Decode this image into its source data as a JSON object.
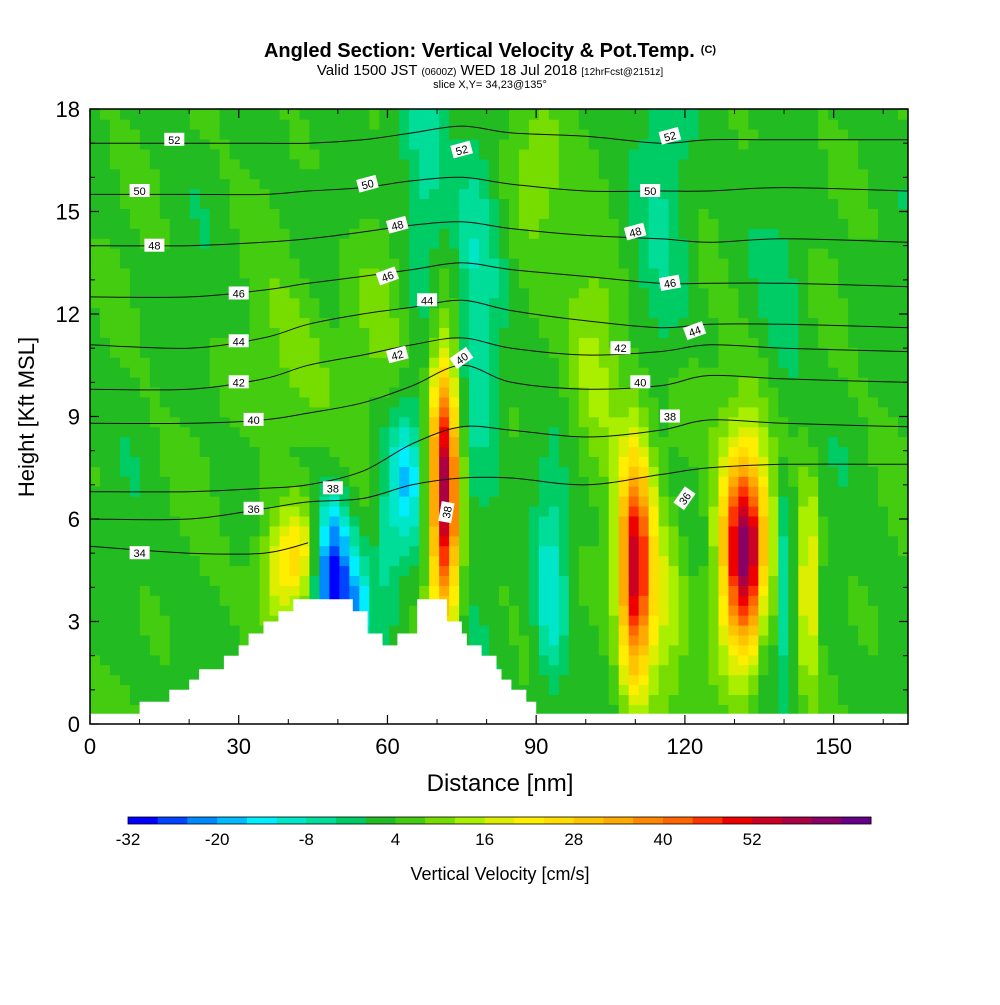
{
  "chart_data": {
    "type": "heatmap",
    "title": "Angled Section: Vertical Velocity & Pot.Temp.",
    "title_suffix": "(C)",
    "subtitle": {
      "prefix": "Valid 1500 JST",
      "utc": "(0600Z)",
      "date": "WED 18 Jul 2018",
      "forecast": "[12hrFcst@2151z]"
    },
    "slice_label": "slice X,Y= 34,23@135°",
    "xlabel": "Distance [nm]",
    "ylabel": "Height [Kft MSL]",
    "xlim": [
      0,
      165
    ],
    "ylim": [
      0,
      18
    ],
    "x_ticks": [
      0,
      30,
      60,
      90,
      120,
      150
    ],
    "y_ticks": [
      0,
      3,
      6,
      9,
      12,
      15,
      18
    ],
    "x_tick_labels": [
      "0",
      "30",
      "60",
      "90",
      "120",
      "150"
    ],
    "y_tick_labels": [
      "0",
      "3",
      "6",
      "9",
      "12",
      "15",
      "18"
    ],
    "colorbar": {
      "label": "Vertical Velocity [cm/s]",
      "min": -32,
      "step": 4,
      "colors": [
        "#0000ff",
        "#0044ff",
        "#0088ff",
        "#00bbff",
        "#00eeff",
        "#00e6c8",
        "#00dd99",
        "#00cc66",
        "#22bb22",
        "#44cc11",
        "#77dd00",
        "#aaee00",
        "#ddee00",
        "#ffee00",
        "#ffdd00",
        "#ffc400",
        "#ffaa00",
        "#ff8800",
        "#ff6600",
        "#ff3300",
        "#ee0000",
        "#cc0022",
        "#aa0044",
        "#880066",
        "#660088"
      ],
      "tick_values": [
        -32,
        -20,
        -8,
        4,
        16,
        28,
        40,
        52
      ],
      "tick_labels": [
        "-32",
        "-20",
        "-8",
        "4",
        "16",
        "28",
        "40",
        "52"
      ]
    },
    "terrain_steps": [
      [
        0,
        0.3
      ],
      [
        10,
        0.3
      ],
      [
        10,
        0.65
      ],
      [
        16,
        0.65
      ],
      [
        16,
        1.0
      ],
      [
        20,
        1.0
      ],
      [
        20,
        1.3
      ],
      [
        22,
        1.3
      ],
      [
        22,
        1.6
      ],
      [
        27,
        1.6
      ],
      [
        27,
        2.0
      ],
      [
        30,
        2.0
      ],
      [
        30,
        2.3
      ],
      [
        32,
        2.3
      ],
      [
        32,
        2.65
      ],
      [
        35,
        2.65
      ],
      [
        35,
        3.0
      ],
      [
        38,
        3.0
      ],
      [
        38,
        3.3
      ],
      [
        41,
        3.3
      ],
      [
        41,
        3.65
      ],
      [
        53,
        3.65
      ],
      [
        53,
        3.3
      ],
      [
        56,
        3.3
      ],
      [
        56,
        2.65
      ],
      [
        59,
        2.65
      ],
      [
        59,
        2.3
      ],
      [
        62,
        2.3
      ],
      [
        62,
        2.65
      ],
      [
        66,
        2.65
      ],
      [
        66,
        3.65
      ],
      [
        72,
        3.65
      ],
      [
        72,
        3.0
      ],
      [
        75,
        3.0
      ],
      [
        75,
        2.65
      ],
      [
        76,
        2.65
      ],
      [
        76,
        2.3
      ],
      [
        79,
        2.3
      ],
      [
        79,
        2.0
      ],
      [
        82,
        2.0
      ],
      [
        82,
        1.6
      ],
      [
        83,
        1.6
      ],
      [
        83,
        1.3
      ],
      [
        85,
        1.3
      ],
      [
        85,
        1.0
      ],
      [
        88,
        1.0
      ],
      [
        88,
        0.65
      ],
      [
        90,
        0.65
      ],
      [
        90,
        0.3
      ],
      [
        165,
        0.3
      ]
    ],
    "velocity_features": [
      {
        "x": 49,
        "z": 4.2,
        "sx": 2.6,
        "sz": 1.6,
        "w": -36
      },
      {
        "x": 54,
        "z": 3.3,
        "sx": 1.8,
        "sz": 1.1,
        "w": -18
      },
      {
        "x": 64,
        "z": 7.2,
        "sx": 2.2,
        "sz": 1.5,
        "w": -16
      },
      {
        "x": 60,
        "z": 5.2,
        "sx": 1.8,
        "sz": 1.8,
        "w": -8
      },
      {
        "x": 71.5,
        "z": 6.8,
        "sx": 2.1,
        "sz": 2.8,
        "w": 56
      },
      {
        "x": 93,
        "z": 3.8,
        "sx": 2.2,
        "sz": 2.2,
        "w": -14
      },
      {
        "x": 110,
        "z": 4.5,
        "sx": 2.4,
        "sz": 2.4,
        "w": 52
      },
      {
        "x": 116,
        "z": 3.5,
        "sx": 2.8,
        "sz": 2.2,
        "w": 12
      },
      {
        "x": 132,
        "z": 5.0,
        "sx": 3.4,
        "sz": 2.2,
        "w": 58
      },
      {
        "x": 136,
        "z": 3.5,
        "sx": 1.5,
        "sz": 1.6,
        "w": -10
      },
      {
        "x": 140,
        "z": 4.0,
        "sx": 1.0,
        "sz": 2.0,
        "w": -14
      },
      {
        "x": 145,
        "z": 4.2,
        "sx": 1.3,
        "sz": 2.0,
        "w": 22
      },
      {
        "x": 39,
        "z": 4.6,
        "sx": 3.4,
        "sz": 1.2,
        "w": 20
      },
      {
        "x": 43,
        "z": 5.2,
        "sx": 2.2,
        "sz": 1.0,
        "w": 10
      },
      {
        "x": 78,
        "z": 11.0,
        "sx": 3.0,
        "sz": 4.5,
        "w": -10
      },
      {
        "x": 67,
        "z": 15.5,
        "sx": 3.5,
        "sz": 3.0,
        "w": -10
      },
      {
        "x": 102,
        "z": 11.0,
        "sx": 4.0,
        "sz": 2.5,
        "w": 10
      },
      {
        "x": 116,
        "z": 14.5,
        "sx": 4.0,
        "sz": 4.0,
        "w": -8
      },
      {
        "x": 58,
        "z": 12.0,
        "sx": 5.0,
        "sz": 2.0,
        "w": 6
      },
      {
        "x": 120,
        "z": 9.2,
        "sx": 6.0,
        "sz": 1.6,
        "w": 5
      },
      {
        "x": 41,
        "z": 10.5,
        "sx": 6.0,
        "sz": 1.8,
        "w": 6
      },
      {
        "x": 140,
        "z": 12.5,
        "sx": 3.0,
        "sz": 2.5,
        "w": -4
      },
      {
        "x": 90,
        "z": 16.5,
        "sx": 4.0,
        "sz": 1.5,
        "w": 8
      }
    ],
    "theta_isolines": [
      {
        "label": "34",
        "pts": [
          [
            0,
            5.2
          ],
          [
            20,
            5.0
          ],
          [
            35,
            5.0
          ],
          [
            44,
            5.3
          ]
        ]
      },
      {
        "label": "36",
        "pts": [
          [
            0,
            6.0
          ],
          [
            20,
            6.0
          ],
          [
            35,
            6.3
          ],
          [
            44,
            6.5
          ],
          [
            55,
            6.6
          ],
          [
            65,
            7.0
          ],
          [
            75,
            7.2
          ],
          [
            85,
            7.2
          ],
          [
            100,
            7.0
          ],
          [
            115,
            7.3
          ],
          [
            125,
            7.5
          ],
          [
            140,
            7.6
          ],
          [
            165,
            7.6
          ]
        ]
      },
      {
        "label": "38",
        "pts": [
          [
            0,
            6.8
          ],
          [
            20,
            6.8
          ],
          [
            35,
            6.9
          ],
          [
            44,
            7.0
          ],
          [
            55,
            7.4
          ],
          [
            65,
            8.2
          ],
          [
            75,
            8.7
          ],
          [
            85,
            8.6
          ],
          [
            100,
            8.4
          ],
          [
            115,
            8.6
          ],
          [
            125,
            8.9
          ],
          [
            140,
            8.8
          ],
          [
            165,
            8.7
          ]
        ]
      },
      {
        "label": "40",
        "pts": [
          [
            0,
            8.8
          ],
          [
            20,
            8.8
          ],
          [
            35,
            8.9
          ],
          [
            44,
            9.1
          ],
          [
            55,
            9.4
          ],
          [
            65,
            9.9
          ],
          [
            75,
            10.5
          ],
          [
            85,
            10.0
          ],
          [
            100,
            9.8
          ],
          [
            115,
            9.9
          ],
          [
            125,
            10.2
          ],
          [
            140,
            10.1
          ],
          [
            165,
            10.0
          ]
        ]
      },
      {
        "label": "42",
        "pts": [
          [
            0,
            9.8
          ],
          [
            20,
            9.8
          ],
          [
            35,
            10.1
          ],
          [
            44,
            10.5
          ],
          [
            55,
            10.8
          ],
          [
            65,
            11.1
          ],
          [
            75,
            11.3
          ],
          [
            85,
            11.0
          ],
          [
            100,
            10.8
          ],
          [
            115,
            10.9
          ],
          [
            125,
            11.1
          ],
          [
            140,
            11.0
          ],
          [
            165,
            10.9
          ]
        ]
      },
      {
        "label": "44",
        "pts": [
          [
            0,
            11.1
          ],
          [
            20,
            11.0
          ],
          [
            35,
            11.3
          ],
          [
            44,
            11.7
          ],
          [
            55,
            12.0
          ],
          [
            65,
            12.2
          ],
          [
            75,
            12.4
          ],
          [
            85,
            12.1
          ],
          [
            100,
            11.8
          ],
          [
            115,
            11.6
          ],
          [
            125,
            11.7
          ],
          [
            140,
            11.7
          ],
          [
            165,
            11.6
          ]
        ]
      },
      {
        "label": "46",
        "pts": [
          [
            0,
            12.5
          ],
          [
            20,
            12.5
          ],
          [
            35,
            12.7
          ],
          [
            44,
            12.9
          ],
          [
            55,
            13.1
          ],
          [
            65,
            13.3
          ],
          [
            75,
            13.5
          ],
          [
            85,
            13.3
          ],
          [
            100,
            13.1
          ],
          [
            115,
            12.9
          ],
          [
            125,
            12.9
          ],
          [
            140,
            12.9
          ],
          [
            165,
            12.8
          ]
        ]
      },
      {
        "label": "48",
        "pts": [
          [
            0,
            14.0
          ],
          [
            20,
            14.0
          ],
          [
            35,
            14.1
          ],
          [
            44,
            14.2
          ],
          [
            55,
            14.4
          ],
          [
            65,
            14.6
          ],
          [
            75,
            14.7
          ],
          [
            85,
            14.5
          ],
          [
            100,
            14.3
          ],
          [
            115,
            14.2
          ],
          [
            125,
            14.1
          ],
          [
            140,
            14.2
          ],
          [
            165,
            14.1
          ]
        ]
      },
      {
        "label": "50",
        "pts": [
          [
            0,
            15.5
          ],
          [
            20,
            15.5
          ],
          [
            35,
            15.5
          ],
          [
            44,
            15.6
          ],
          [
            55,
            15.7
          ],
          [
            65,
            15.9
          ],
          [
            75,
            16.0
          ],
          [
            85,
            15.8
          ],
          [
            100,
            15.6
          ],
          [
            115,
            15.6
          ],
          [
            125,
            15.6
          ],
          [
            140,
            15.7
          ],
          [
            165,
            15.6
          ]
        ]
      },
      {
        "label": "52",
        "pts": [
          [
            0,
            17.0
          ],
          [
            20,
            17.0
          ],
          [
            35,
            17.0
          ],
          [
            44,
            17.0
          ],
          [
            55,
            17.1
          ],
          [
            65,
            17.3
          ],
          [
            75,
            17.5
          ],
          [
            85,
            17.3
          ],
          [
            100,
            17.2
          ],
          [
            115,
            17.0
          ],
          [
            125,
            17.1
          ],
          [
            140,
            17.1
          ],
          [
            165,
            17.1
          ]
        ]
      }
    ],
    "isoline_labels": [
      {
        "text": "52",
        "x": 17,
        "z": 17.1,
        "angle": 0
      },
      {
        "text": "50",
        "x": 10,
        "z": 15.6,
        "angle": 0
      },
      {
        "text": "48",
        "x": 13,
        "z": 14.0,
        "angle": 0
      },
      {
        "text": "46",
        "x": 30,
        "z": 12.6,
        "angle": 0
      },
      {
        "text": "44",
        "x": 30,
        "z": 11.2,
        "angle": 0
      },
      {
        "text": "42",
        "x": 30,
        "z": 10.0,
        "angle": 0
      },
      {
        "text": "40",
        "x": 33,
        "z": 8.9,
        "angle": 0
      },
      {
        "text": "36",
        "x": 33,
        "z": 6.3,
        "angle": 0
      },
      {
        "text": "34",
        "x": 10,
        "z": 5.0,
        "angle": 0
      },
      {
        "text": "38",
        "x": 49,
        "z": 6.9,
        "angle": 0
      },
      {
        "text": "38",
        "x": 72,
        "z": 6.2,
        "angle": -80
      },
      {
        "text": "52",
        "x": 75,
        "z": 16.8,
        "angle": -15
      },
      {
        "text": "50",
        "x": 56,
        "z": 15.8,
        "angle": -15
      },
      {
        "text": "48",
        "x": 62,
        "z": 14.6,
        "angle": -15
      },
      {
        "text": "46",
        "x": 60,
        "z": 13.1,
        "angle": -20
      },
      {
        "text": "44",
        "x": 68,
        "z": 12.4,
        "angle": 0
      },
      {
        "text": "42",
        "x": 62,
        "z": 10.8,
        "angle": -15
      },
      {
        "text": "40",
        "x": 75,
        "z": 10.7,
        "angle": -35
      },
      {
        "text": "52",
        "x": 117,
        "z": 17.2,
        "angle": -15
      },
      {
        "text": "50",
        "x": 113,
        "z": 15.6,
        "angle": 0
      },
      {
        "text": "48",
        "x": 110,
        "z": 14.4,
        "angle": -15
      },
      {
        "text": "46",
        "x": 117,
        "z": 12.9,
        "angle": -10
      },
      {
        "text": "44",
        "x": 122,
        "z": 11.5,
        "angle": -20
      },
      {
        "text": "42",
        "x": 107,
        "z": 11.0,
        "angle": 0
      },
      {
        "text": "40",
        "x": 111,
        "z": 10.0,
        "angle": 0
      },
      {
        "text": "38",
        "x": 117,
        "z": 9.0,
        "angle": 0
      },
      {
        "text": "36",
        "x": 120,
        "z": 6.6,
        "angle": -55
      }
    ]
  }
}
